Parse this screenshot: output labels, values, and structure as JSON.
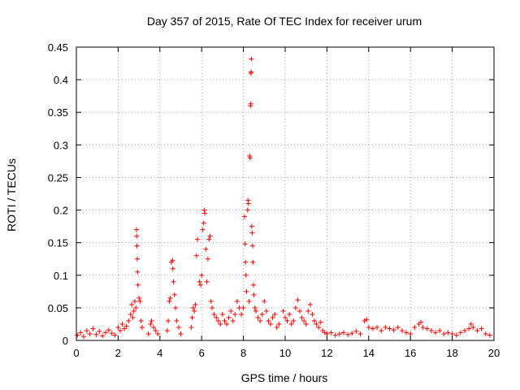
{
  "chart_data": {
    "type": "scatter",
    "title": "Day 357 of 2015, Rate Of TEC Index for receiver urum",
    "xlabel": "GPS time / hours",
    "ylabel": "ROTI / TECUs",
    "xlim": [
      0,
      20
    ],
    "ylim": [
      0,
      0.45
    ],
    "x_ticks": [
      0,
      2,
      4,
      6,
      8,
      10,
      12,
      14,
      16,
      18,
      20
    ],
    "y_ticks": [
      0,
      0.05,
      0.1,
      0.15,
      0.2,
      0.25,
      0.3,
      0.35,
      0.4,
      0.45
    ],
    "x_tick_labels": [
      "0",
      "2",
      "4",
      "6",
      "8",
      "10",
      "12",
      "14",
      "16",
      "18",
      "20"
    ],
    "y_tick_labels": [
      "0",
      "0.05",
      "0.1",
      "0.15",
      "0.2",
      "0.25",
      "0.3",
      "0.35",
      "0.4",
      "0.45"
    ],
    "grid": true,
    "marker": "+",
    "series_color": "#ff0000",
    "series": [
      {
        "name": "ROTI",
        "points": [
          [
            0.05,
            0.008
          ],
          [
            0.2,
            0.012
          ],
          [
            0.35,
            0.006
          ],
          [
            0.5,
            0.015
          ],
          [
            0.65,
            0.01
          ],
          [
            0.8,
            0.018
          ],
          [
            0.95,
            0.009
          ],
          [
            1.1,
            0.014
          ],
          [
            1.25,
            0.007
          ],
          [
            1.4,
            0.012
          ],
          [
            1.55,
            0.016
          ],
          [
            1.7,
            0.011
          ],
          [
            1.85,
            0.008
          ],
          [
            2.0,
            0.02
          ],
          [
            2.1,
            0.015
          ],
          [
            2.2,
            0.025
          ],
          [
            2.3,
            0.018
          ],
          [
            2.4,
            0.022
          ],
          [
            2.5,
            0.03
          ],
          [
            2.6,
            0.04
          ],
          [
            2.65,
            0.055
          ],
          [
            2.7,
            0.035
          ],
          [
            2.75,
            0.045
          ],
          [
            2.8,
            0.06
          ],
          [
            2.85,
            0.05
          ],
          [
            2.88,
            0.17
          ],
          [
            2.89,
            0.16
          ],
          [
            2.9,
            0.145
          ],
          [
            2.92,
            0.125
          ],
          [
            2.93,
            0.105
          ],
          [
            2.95,
            0.085
          ],
          [
            3.0,
            0.065
          ],
          [
            3.05,
            0.06
          ],
          [
            3.1,
            0.03
          ],
          [
            3.15,
            0.02
          ],
          [
            3.45,
            0.01
          ],
          [
            3.55,
            0.025
          ],
          [
            3.6,
            0.03
          ],
          [
            3.7,
            0.02
          ],
          [
            3.8,
            0.015
          ],
          [
            3.9,
            0.01
          ],
          [
            4.35,
            0.015
          ],
          [
            4.4,
            0.03
          ],
          [
            4.45,
            0.06
          ],
          [
            4.5,
            0.065
          ],
          [
            4.55,
            0.12
          ],
          [
            4.6,
            0.123
          ],
          [
            4.62,
            0.11
          ],
          [
            4.65,
            0.09
          ],
          [
            4.7,
            0.07
          ],
          [
            4.75,
            0.05
          ],
          [
            4.8,
            0.03
          ],
          [
            4.9,
            0.02
          ],
          [
            5.0,
            0.01
          ],
          [
            5.5,
            0.02
          ],
          [
            5.55,
            0.035
          ],
          [
            5.6,
            0.05
          ],
          [
            5.65,
            0.045
          ],
          [
            5.7,
            0.055
          ],
          [
            5.75,
            0.13
          ],
          [
            5.8,
            0.155
          ],
          [
            5.9,
            0.09
          ],
          [
            5.95,
            0.085
          ],
          [
            6.0,
            0.1
          ],
          [
            6.05,
            0.17
          ],
          [
            6.1,
            0.18
          ],
          [
            6.12,
            0.2
          ],
          [
            6.15,
            0.195
          ],
          [
            6.2,
            0.14
          ],
          [
            6.25,
            0.09
          ],
          [
            6.3,
            0.125
          ],
          [
            6.35,
            0.155
          ],
          [
            6.4,
            0.16
          ],
          [
            6.45,
            0.06
          ],
          [
            6.5,
            0.05
          ],
          [
            6.6,
            0.04
          ],
          [
            6.7,
            0.035
          ],
          [
            6.8,
            0.03
          ],
          [
            6.9,
            0.025
          ],
          [
            7.0,
            0.04
          ],
          [
            7.1,
            0.03
          ],
          [
            7.2,
            0.025
          ],
          [
            7.3,
            0.035
          ],
          [
            7.4,
            0.045
          ],
          [
            7.5,
            0.03
          ],
          [
            7.6,
            0.04
          ],
          [
            7.7,
            0.06
          ],
          [
            7.8,
            0.05
          ],
          [
            7.9,
            0.04
          ],
          [
            8.0,
            0.05
          ],
          [
            8.05,
            0.19
          ],
          [
            8.08,
            0.148
          ],
          [
            8.1,
            0.12
          ],
          [
            8.12,
            0.1
          ],
          [
            8.15,
            0.075
          ],
          [
            8.2,
            0.2
          ],
          [
            8.22,
            0.215
          ],
          [
            8.24,
            0.21
          ],
          [
            8.27,
            0.06
          ],
          [
            8.3,
            0.283
          ],
          [
            8.32,
            0.28
          ],
          [
            8.34,
            0.36
          ],
          [
            8.35,
            0.363
          ],
          [
            8.36,
            0.41
          ],
          [
            8.37,
            0.412
          ],
          [
            8.38,
            0.432
          ],
          [
            8.4,
            0.175
          ],
          [
            8.42,
            0.165
          ],
          [
            8.44,
            0.145
          ],
          [
            8.46,
            0.12
          ],
          [
            8.48,
            0.085
          ],
          [
            8.5,
            0.07
          ],
          [
            8.55,
            0.05
          ],
          [
            8.6,
            0.045
          ],
          [
            8.7,
            0.035
          ],
          [
            8.8,
            0.03
          ],
          [
            8.9,
            0.04
          ],
          [
            9.0,
            0.06
          ],
          [
            9.1,
            0.045
          ],
          [
            9.2,
            0.03
          ],
          [
            9.3,
            0.025
          ],
          [
            9.4,
            0.035
          ],
          [
            9.5,
            0.04
          ],
          [
            9.6,
            0.02
          ],
          [
            9.7,
            0.025
          ],
          [
            9.9,
            0.045
          ],
          [
            10.0,
            0.035
          ],
          [
            10.1,
            0.03
          ],
          [
            10.2,
            0.04
          ],
          [
            10.3,
            0.025
          ],
          [
            10.4,
            0.03
          ],
          [
            10.5,
            0.05
          ],
          [
            10.6,
            0.062
          ],
          [
            10.7,
            0.045
          ],
          [
            10.8,
            0.035
          ],
          [
            10.9,
            0.03
          ],
          [
            11.0,
            0.025
          ],
          [
            11.1,
            0.045
          ],
          [
            11.2,
            0.055
          ],
          [
            11.3,
            0.04
          ],
          [
            11.4,
            0.03
          ],
          [
            11.5,
            0.025
          ],
          [
            11.6,
            0.02
          ],
          [
            11.7,
            0.028
          ],
          [
            11.8,
            0.015
          ],
          [
            11.9,
            0.012
          ],
          [
            12.0,
            0.01
          ],
          [
            12.2,
            0.012
          ],
          [
            12.4,
            0.008
          ],
          [
            12.6,
            0.01
          ],
          [
            12.8,
            0.012
          ],
          [
            13.0,
            0.009
          ],
          [
            13.2,
            0.011
          ],
          [
            13.4,
            0.014
          ],
          [
            13.6,
            0.01
          ],
          [
            13.8,
            0.03
          ],
          [
            13.9,
            0.032
          ],
          [
            14.0,
            0.02
          ],
          [
            14.2,
            0.018
          ],
          [
            14.4,
            0.02
          ],
          [
            14.6,
            0.015
          ],
          [
            14.8,
            0.02
          ],
          [
            15.0,
            0.018
          ],
          [
            15.2,
            0.016
          ],
          [
            15.4,
            0.02
          ],
          [
            15.6,
            0.015
          ],
          [
            15.8,
            0.012
          ],
          [
            16.0,
            0.01
          ],
          [
            16.2,
            0.02
          ],
          [
            16.4,
            0.025
          ],
          [
            16.5,
            0.028
          ],
          [
            16.6,
            0.02
          ],
          [
            16.8,
            0.018
          ],
          [
            17.0,
            0.015
          ],
          [
            17.2,
            0.012
          ],
          [
            17.4,
            0.015
          ],
          [
            17.6,
            0.01
          ],
          [
            17.8,
            0.012
          ],
          [
            18.0,
            0.01
          ],
          [
            18.2,
            0.008
          ],
          [
            18.4,
            0.012
          ],
          [
            18.6,
            0.015
          ],
          [
            18.8,
            0.018
          ],
          [
            18.9,
            0.025
          ],
          [
            19.0,
            0.02
          ],
          [
            19.2,
            0.015
          ],
          [
            19.4,
            0.018
          ],
          [
            19.6,
            0.01
          ],
          [
            19.8,
            0.008
          ]
        ]
      }
    ]
  }
}
